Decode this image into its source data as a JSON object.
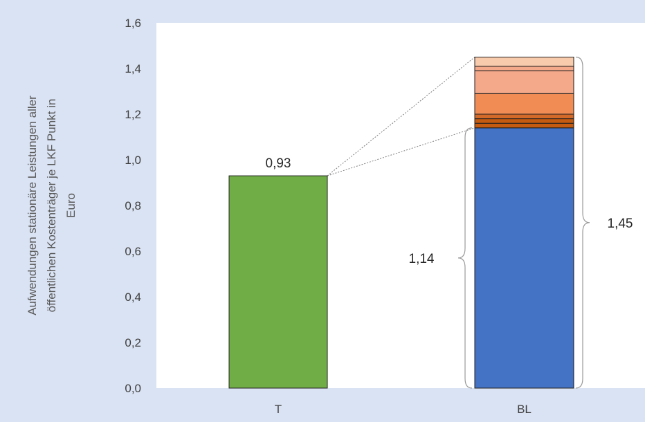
{
  "chart_data": {
    "type": "bar",
    "stacked": true,
    "categories": [
      "T",
      "BL"
    ],
    "ylabel_lines": [
      "Aufwendungen stationäre Leistungen aller",
      "öffentlichen Kostenträger  je LKF Punkt in",
      "Euro"
    ],
    "ylim": [
      0,
      1.6
    ],
    "yticks": [
      "0,0",
      "0,2",
      "0,4",
      "0,6",
      "0,8",
      "1,0",
      "1,2",
      "1,4",
      "1,6"
    ],
    "grid": false,
    "bars": [
      {
        "category": "T",
        "label": "0,93",
        "segments": [
          {
            "value": 0.93,
            "color": "#70ad47"
          }
        ]
      },
      {
        "category": "BL",
        "segments": [
          {
            "value": 1.14,
            "color": "#4472c4"
          },
          {
            "value": 0.02,
            "color": "#c55a11"
          },
          {
            "value": 0.02,
            "color": "#c55a11"
          },
          {
            "value": 0.02,
            "color": "#d46a2a"
          },
          {
            "value": 0.09,
            "color": "#f08c54"
          },
          {
            "value": 0.1,
            "color": "#f4a98a"
          },
          {
            "value": 0.02,
            "color": "#f4a98a"
          },
          {
            "value": 0.04,
            "color": "#f8cbad"
          }
        ]
      }
    ],
    "brace_labels": {
      "base": "1,14",
      "total": "1,45"
    },
    "base_value": 1.14,
    "total_value": 1.45
  }
}
